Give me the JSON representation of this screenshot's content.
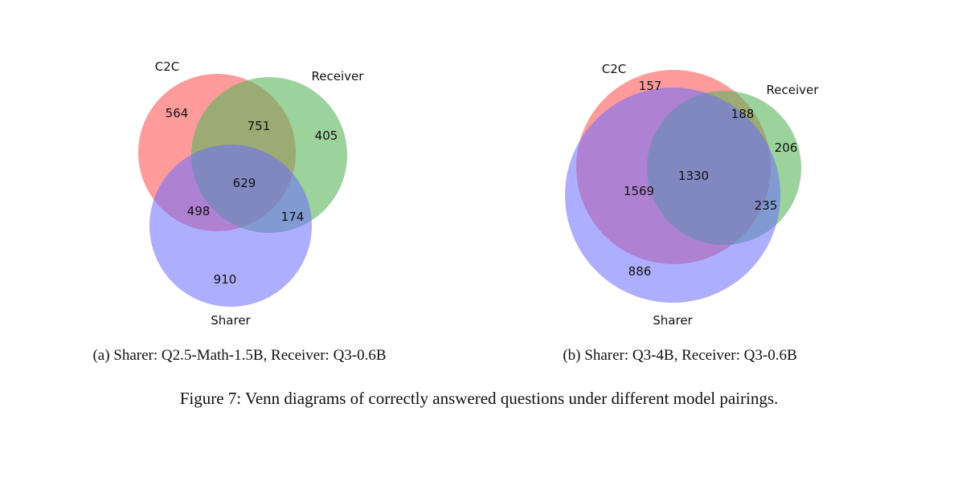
{
  "figure": {
    "caption": "Figure 7: Venn diagrams of correctly answered questions under different model pairings."
  },
  "colors": {
    "C2C": "#ff6666",
    "Receiver": "#5ab45a",
    "Sharer": "#6b6bff"
  },
  "chart_data": [
    {
      "type": "venn",
      "subcaption": "(a) Sharer: Q2.5-Math-1.5B, Receiver: Q3-0.6B",
      "sets": [
        "C2C",
        "Receiver",
        "Sharer"
      ],
      "regions": {
        "C2C_only": 564,
        "Receiver_only": 405,
        "Sharer_only": 910,
        "C2C_Receiver": 751,
        "C2C_Sharer": 498,
        "Receiver_Sharer": 174,
        "all_three": 629
      }
    },
    {
      "type": "venn",
      "subcaption": "(b) Sharer: Q3-4B, Receiver: Q3-0.6B",
      "sets": [
        "C2C",
        "Receiver",
        "Sharer"
      ],
      "regions": {
        "C2C_only": 157,
        "Receiver_only": 206,
        "Sharer_only": 886,
        "C2C_Receiver": 188,
        "C2C_Sharer": 1569,
        "Receiver_Sharer": 235,
        "all_three": 1330
      }
    }
  ]
}
